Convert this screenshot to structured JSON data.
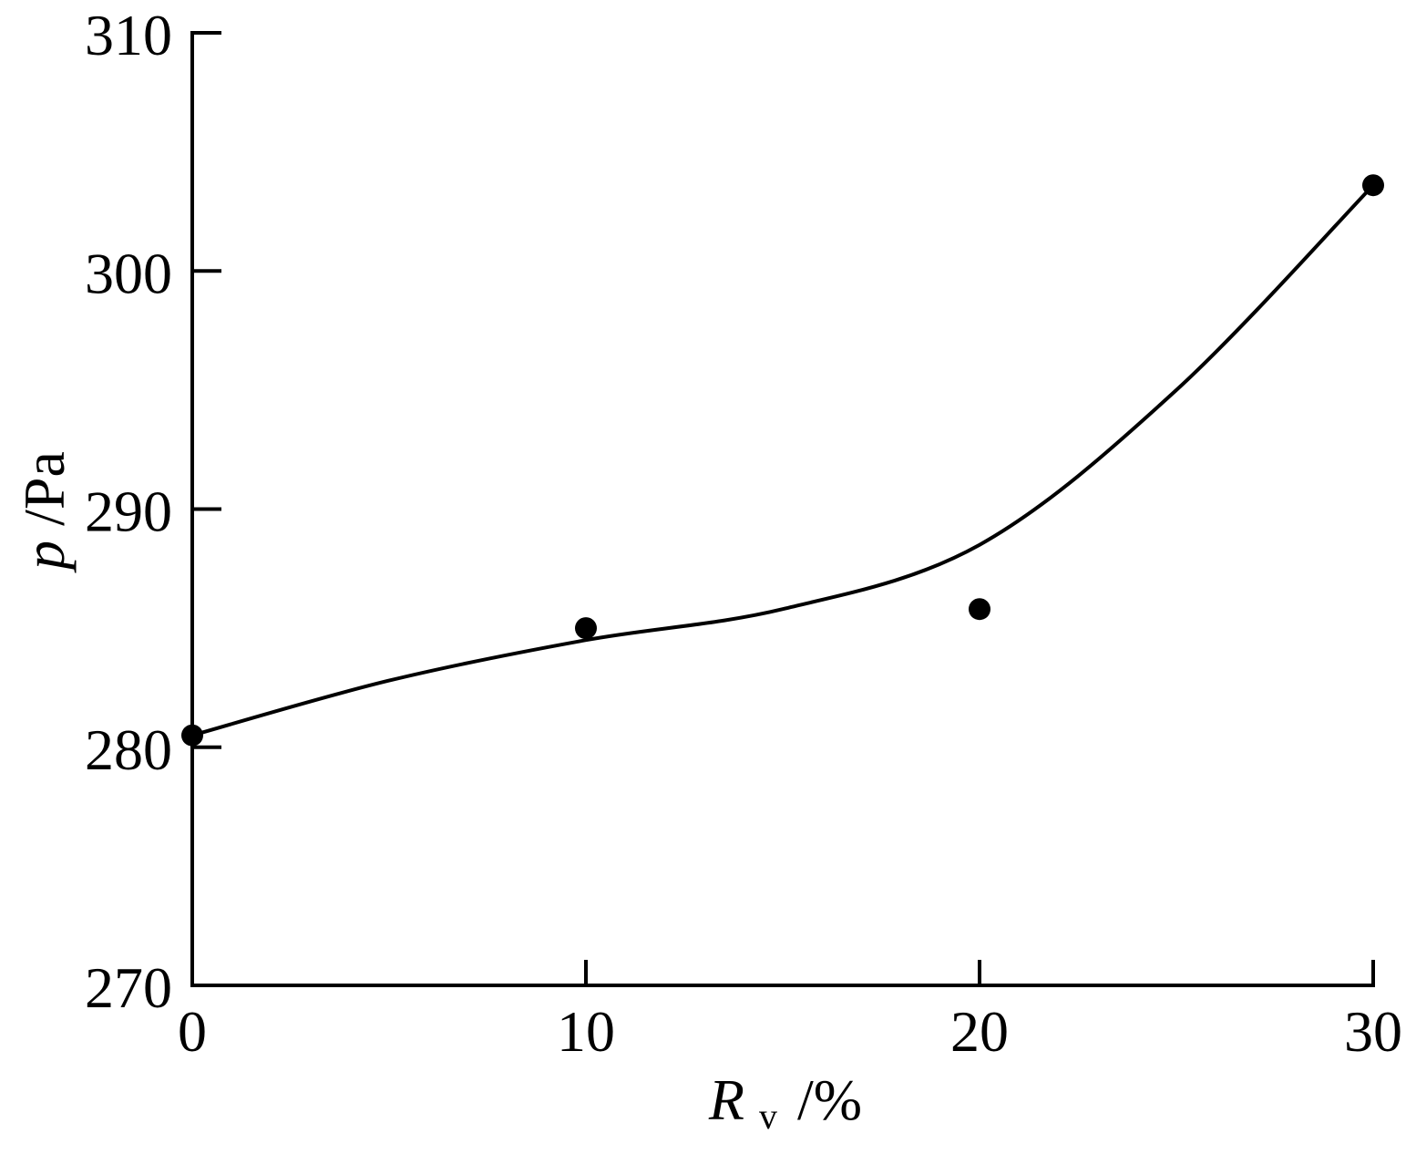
{
  "chart_data": {
    "type": "scatter",
    "title": "",
    "xlabel": {
      "symbol": "R",
      "subscript": "v",
      "unit": "/%"
    },
    "ylabel": {
      "symbol": "p",
      "unit": "/Pa"
    },
    "xlim": [
      0,
      30
    ],
    "ylim": [
      270,
      310
    ],
    "xticks": [
      0,
      10,
      20,
      30
    ],
    "yticks": [
      270,
      280,
      290,
      300,
      310
    ],
    "grid": false,
    "legend": "none",
    "series": [
      {
        "kind": "points",
        "marker": "filled-circle",
        "x": [
          0,
          10,
          20,
          30
        ],
        "y": [
          280.5,
          285.0,
          285.8,
          303.6
        ]
      },
      {
        "kind": "fitted-curve",
        "x": [
          0,
          5,
          10,
          15,
          20,
          25,
          30
        ],
        "y": [
          280.5,
          282.8,
          284.5,
          285.8,
          288.5,
          295.0,
          303.6
        ]
      }
    ],
    "colors": {
      "axis": "#000000",
      "line": "#000000",
      "marker": "#000000"
    }
  }
}
